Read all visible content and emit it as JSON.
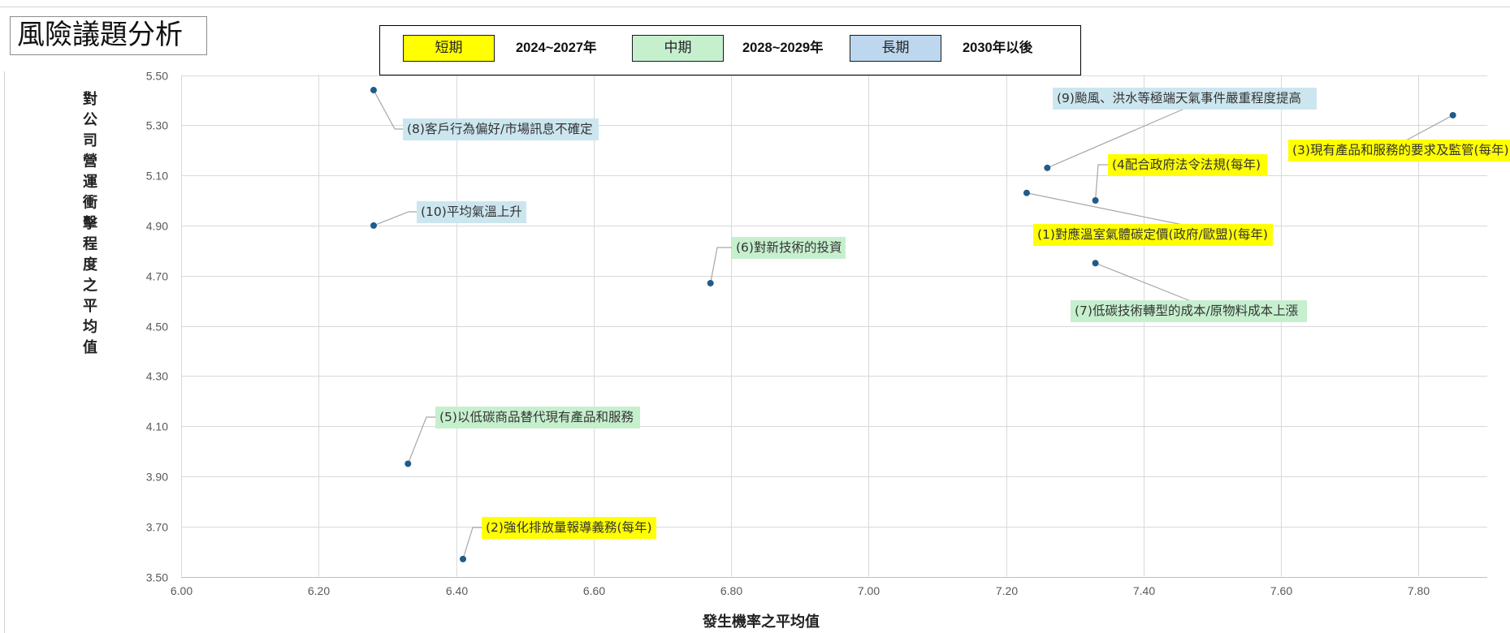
{
  "legend": {
    "items": [
      {
        "label": "短期",
        "period": "2024~2027年",
        "color": "#FFFF00",
        "label_color": "#FFFF00"
      },
      {
        "label": "中期",
        "period": "2028~2029年",
        "color": "#C6EFCE",
        "label_color": "#C6EFCE"
      },
      {
        "label": "長期",
        "period": "2030年以後",
        "color": "#BDD7EE",
        "label_color": "#CCE6EF"
      }
    ]
  },
  "colors": {
    "point": "#1F5C8B",
    "leader": "#A6A6A6",
    "grid": "#D9D9D9",
    "axis": "#BFBFBF",
    "tick_text": "#595959"
  },
  "chart_data": {
    "type": "scatter",
    "title": "風險議題分析",
    "xlabel": "發生機率之平均值",
    "ylabel": "對公司營運衝擊程度之平均值",
    "xlim": [
      6.0,
      7.9
    ],
    "ylim": [
      3.5,
      5.5
    ],
    "xticks": [
      "6.00",
      "6.20",
      "6.40",
      "6.60",
      "6.80",
      "7.00",
      "7.20",
      "7.40",
      "7.60",
      "7.80"
    ],
    "yticks": [
      "5.50",
      "5.30",
      "5.10",
      "4.90",
      "4.70",
      "4.50",
      "4.30",
      "4.10",
      "3.90",
      "3.70",
      "3.50"
    ],
    "grid": true,
    "points": [
      {
        "label": "(1)對應溫室氣體碳定價(政府/歐盟)(每年)",
        "term": "短期",
        "x": 7.23,
        "y": 5.03
      },
      {
        "label": "(2)強化排放量報導義務(每年)",
        "term": "短期",
        "x": 6.41,
        "y": 3.57
      },
      {
        "label": "(3)現有產品和服務的要求及監管(每年)",
        "term": "短期",
        "x": 7.85,
        "y": 5.34
      },
      {
        "label": "(4配合政府法令法規(每年)",
        "term": "短期",
        "x": 7.33,
        "y": 5.0
      },
      {
        "label": "(5)以低碳商品替代現有產品和服務",
        "term": "中期",
        "x": 6.33,
        "y": 3.95
      },
      {
        "label": "(6)對新技術的投資",
        "term": "中期",
        "x": 6.77,
        "y": 4.67
      },
      {
        "label": "(7)低碳技術轉型的成本/原物料成本上漲",
        "term": "中期",
        "x": 7.33,
        "y": 4.75
      },
      {
        "label": "(8)客戶行為偏好/市場訊息不確定",
        "term": "長期",
        "x": 6.28,
        "y": 5.44
      },
      {
        "label": "(9)颱風、洪水等極端天氣事件嚴重程度提高",
        "term": "長期",
        "x": 7.26,
        "y": 5.13
      },
      {
        "label": "(10)平均氣溫上升",
        "term": "長期",
        "x": 6.28,
        "y": 4.9
      }
    ]
  }
}
